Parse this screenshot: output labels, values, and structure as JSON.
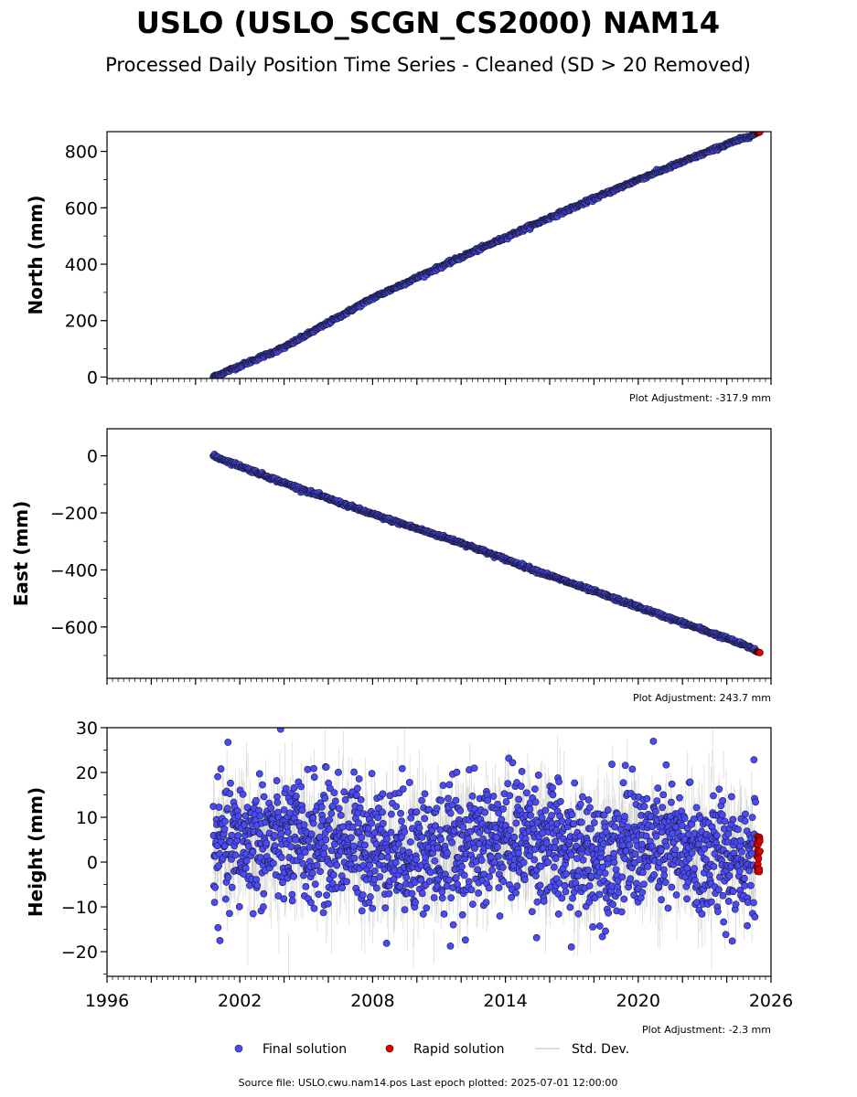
{
  "title": "USLO (USLO_SCGN_CS2000) NAM14",
  "subtitle": "Processed Daily Position Time Series - Cleaned (SD > 20 Removed)",
  "source_text": "Source file: USLO.cwu.nam14.pos  Last epoch plotted: 2025-07-01 12:00:00",
  "legend": [
    {
      "label": "Final solution",
      "color": "#4b4bf5",
      "kind": "dot"
    },
    {
      "label": "Rapid solution",
      "color": "#e00000",
      "kind": "dot"
    },
    {
      "label": "Std. Dev.",
      "color": "#d0d0d0",
      "kind": "line"
    }
  ],
  "colors": {
    "final": "#4b4bf5",
    "final_edge": "#1a1a3a",
    "rapid": "#e00000",
    "stddev": "#bdbdbd"
  },
  "chart_data": [
    {
      "type": "scatter",
      "ylabel": "North (mm)",
      "adjustment": "Plot Adjustment: -317.9 mm",
      "xlim": [
        1996,
        2026
      ],
      "ylim": [
        -5,
        870
      ],
      "yticks": [
        0,
        200,
        400,
        600,
        800
      ],
      "ytick_labels": [
        "0",
        "200",
        "400",
        "600",
        "800"
      ],
      "series": [
        {
          "name": "Final solution",
          "x": [
            2000.8,
            2004,
            2008,
            2012,
            2016,
            2020,
            2024,
            2025.3
          ],
          "y": [
            0,
            105,
            280,
            425,
            565,
            700,
            825,
            862
          ]
        },
        {
          "name": "Rapid solution",
          "x": [
            2025.35,
            2025.5
          ],
          "y": [
            865,
            869
          ]
        }
      ]
    },
    {
      "type": "scatter",
      "ylabel": "East (mm)",
      "adjustment": "Plot Adjustment: 243.7 mm",
      "xlim": [
        1996,
        2026
      ],
      "ylim": [
        -780,
        95
      ],
      "yticks": [
        0,
        -200,
        -400,
        -600
      ],
      "ytick_labels": [
        "0",
        "−200",
        "−400",
        "−600"
      ],
      "series": [
        {
          "name": "Final solution",
          "x": [
            2000.8,
            2004,
            2008,
            2012,
            2016,
            2020,
            2024,
            2025.3
          ],
          "y": [
            0,
            -95,
            -205,
            -305,
            -420,
            -530,
            -640,
            -680
          ]
        },
        {
          "name": "Rapid solution",
          "x": [
            2025.35,
            2025.5
          ],
          "y": [
            -687,
            -690
          ]
        }
      ]
    },
    {
      "type": "scatter",
      "ylabel": "Height (mm)",
      "adjustment": "Plot Adjustment: -2.3 mm",
      "xlim": [
        1996,
        2026
      ],
      "ylim": [
        -25.5,
        30
      ],
      "yticks": [
        -20,
        -10,
        0,
        10,
        20,
        30
      ],
      "ytick_labels": [
        "−20",
        "−10",
        "0",
        "10",
        "20",
        "30"
      ],
      "xticks": [
        1996,
        2002,
        2008,
        2014,
        2020,
        2026
      ],
      "xtick_labels": [
        "1996",
        "2002",
        "2008",
        "2014",
        "2020",
        "2026"
      ],
      "series": [
        {
          "name": "Final solution",
          "x": [
            2000.8,
            2003,
            2005,
            2007,
            2009,
            2011,
            2013,
            2015,
            2017,
            2019,
            2021,
            2023,
            2025.3
          ],
          "y": [
            3,
            5,
            4,
            5,
            3,
            2,
            4,
            6,
            1,
            3,
            4,
            1,
            2
          ],
          "spread_sd": 7
        },
        {
          "name": "Rapid solution",
          "x": [
            2025.35,
            2025.5
          ],
          "y": [
            -2.3,
            6.5
          ]
        }
      ]
    }
  ]
}
